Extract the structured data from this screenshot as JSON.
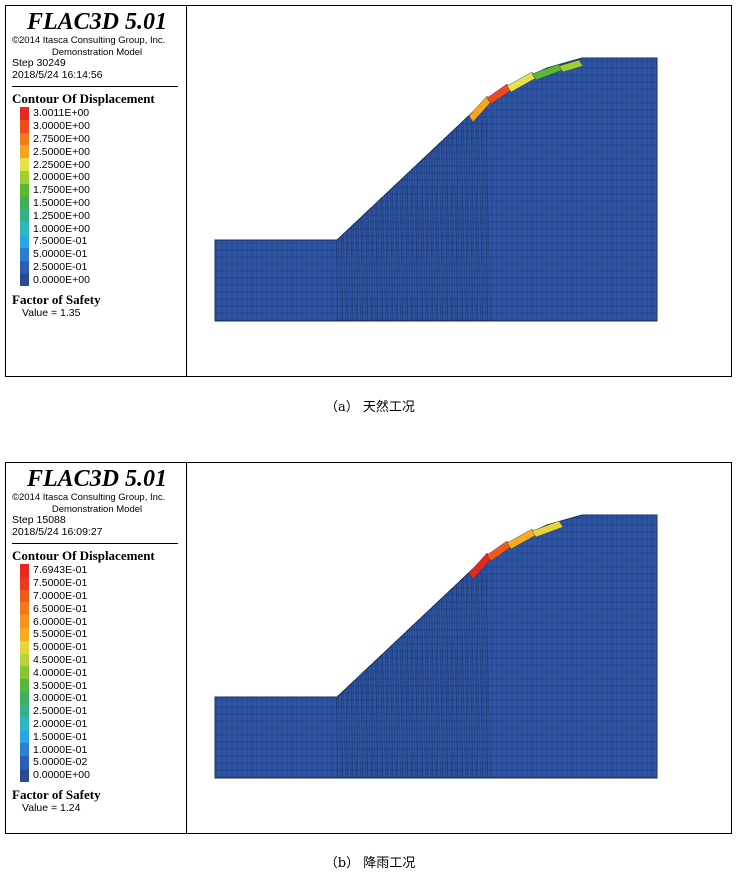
{
  "panels": [
    {
      "app_title": "FLAC3D 5.01",
      "copyright": "©2014 Itasca Consulting Group, Inc.",
      "model_name": "Demonstration Model",
      "step": "Step 30249",
      "timestamp": "2018/5/24 16:14:56",
      "contour_title": "Contour Of Displacement",
      "levels": [
        {
          "label": "3.0011E+00",
          "color": "#e8281e"
        },
        {
          "label": "3.0000E+00",
          "color": "#ee4a1c"
        },
        {
          "label": "2.7500E+00",
          "color": "#f27a1c"
        },
        {
          "label": "2.5000E+00",
          "color": "#f7a51e"
        },
        {
          "label": "2.2500E+00",
          "color": "#e6e04a"
        },
        {
          "label": "2.0000E+00",
          "color": "#9ccf2f"
        },
        {
          "label": "1.7500E+00",
          "color": "#5cb832"
        },
        {
          "label": "1.5000E+00",
          "color": "#3fae5a"
        },
        {
          "label": "1.2500E+00",
          "color": "#36b08a"
        },
        {
          "label": "1.0000E+00",
          "color": "#2fb8bf"
        },
        {
          "label": "7.5000E-01",
          "color": "#29a7e0"
        },
        {
          "label": "5.0000E-01",
          "color": "#2b7fd0"
        },
        {
          "label": "2.5000E-01",
          "color": "#2c5fb0"
        },
        {
          "label": "0.0000E+00",
          "color": "#2a4b9a"
        }
      ],
      "fos_title": "Factor of Safety",
      "fos_value": "Value = 1.35",
      "caption": "（a） 天然工况",
      "crest_colors": [
        "#f7a51e",
        "#ee4a1c",
        "#e6e04a",
        "#5cb832",
        "#9ccf2f"
      ]
    },
    {
      "app_title": "FLAC3D 5.01",
      "copyright": "©2014 Itasca Consulting Group, Inc.",
      "model_name": "Demonstration Model",
      "step": "Step 15088",
      "timestamp": "2018/5/24 16:09:27",
      "contour_title": "Contour Of Displacement",
      "levels": [
        {
          "label": "7.6943E-01",
          "color": "#e8281e"
        },
        {
          "label": "7.5000E-01",
          "color": "#ea3a1d"
        },
        {
          "label": "7.0000E-01",
          "color": "#ef5a1c"
        },
        {
          "label": "6.5000E-01",
          "color": "#f27a1c"
        },
        {
          "label": "6.0000E-01",
          "color": "#f5941d"
        },
        {
          "label": "5.5000E-01",
          "color": "#f7ad1f"
        },
        {
          "label": "5.0000E-01",
          "color": "#e6d63c"
        },
        {
          "label": "4.5000E-01",
          "color": "#b9d236"
        },
        {
          "label": "4.0000E-01",
          "color": "#86c632"
        },
        {
          "label": "3.5000E-01",
          "color": "#56b63a"
        },
        {
          "label": "3.0000E-01",
          "color": "#3fae62"
        },
        {
          "label": "2.5000E-01",
          "color": "#35b18f"
        },
        {
          "label": "2.0000E-01",
          "color": "#2fb7bd"
        },
        {
          "label": "1.5000E-01",
          "color": "#2aa6df"
        },
        {
          "label": "1.0000E-01",
          "color": "#2b80d0"
        },
        {
          "label": "5.0000E-02",
          "color": "#2c5fb0"
        },
        {
          "label": "0.0000E+00",
          "color": "#2a4b9a"
        }
      ],
      "fos_title": "Factor of Safety",
      "fos_value": "Value = 1.24",
      "caption": "（b） 降雨工况",
      "crest_colors": [
        "#e8281e",
        "#ef5a1c",
        "#f7ad1f",
        "#e6d63c"
      ]
    }
  ],
  "model_color": "#2e56a4",
  "mesh_color": "#1b2f5e"
}
